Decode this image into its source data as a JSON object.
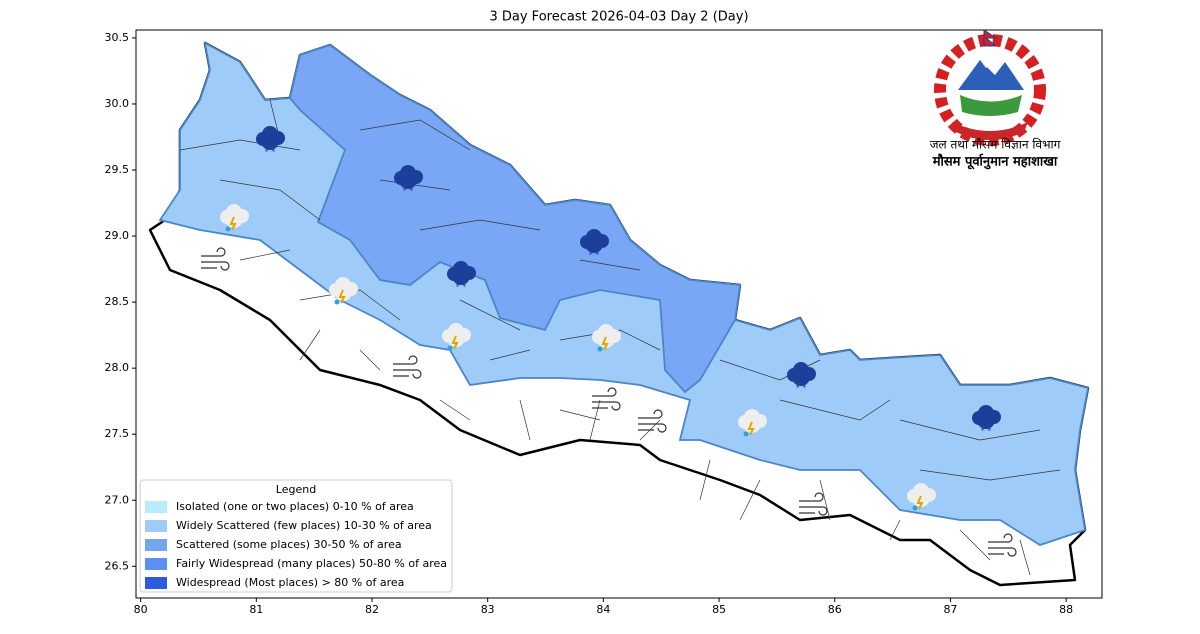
{
  "map": {
    "title": "3 Day Forecast 2026-04-03 Day 2 (Day)",
    "department": "जल तथा मौसम विज्ञान विभाग",
    "division": "मौसम पूर्वानुमान महाशाखा",
    "xlim": [
      79.96,
      88.31
    ],
    "ylim": [
      26.26,
      30.56
    ],
    "xticks": [
      80,
      81,
      82,
      83,
      84,
      85,
      86,
      87,
      88
    ],
    "yticks": [
      26.5,
      {
        "value": 27,
        "label": "27.0"
      },
      27.5,
      {
        "value": 28,
        "label": "28.0"
      },
      28.5,
      {
        "value": 29,
        "label": "29.0"
      },
      29.5,
      {
        "value": 30,
        "label": "30.0"
      },
      30.5
    ],
    "legend": {
      "title": "Legend",
      "items": [
        {
          "label": "Isolated (one or two places)  0-10 % of area",
          "color": "#b9ebfc"
        },
        {
          "label": "Widely Scattered (few places)  10-30 % of area",
          "color": "#9fcbf8"
        },
        {
          "label": "Scattered (some places)  30-50 % of area",
          "color": "#72a7ee"
        },
        {
          "label": "Fairly Widespread (many places)  50-80 % of area",
          "color": "#5b8ff0"
        },
        {
          "label": "Widespread (Most places) > 80 % of area",
          "color": "#2b5ce0"
        }
      ]
    }
  }
}
